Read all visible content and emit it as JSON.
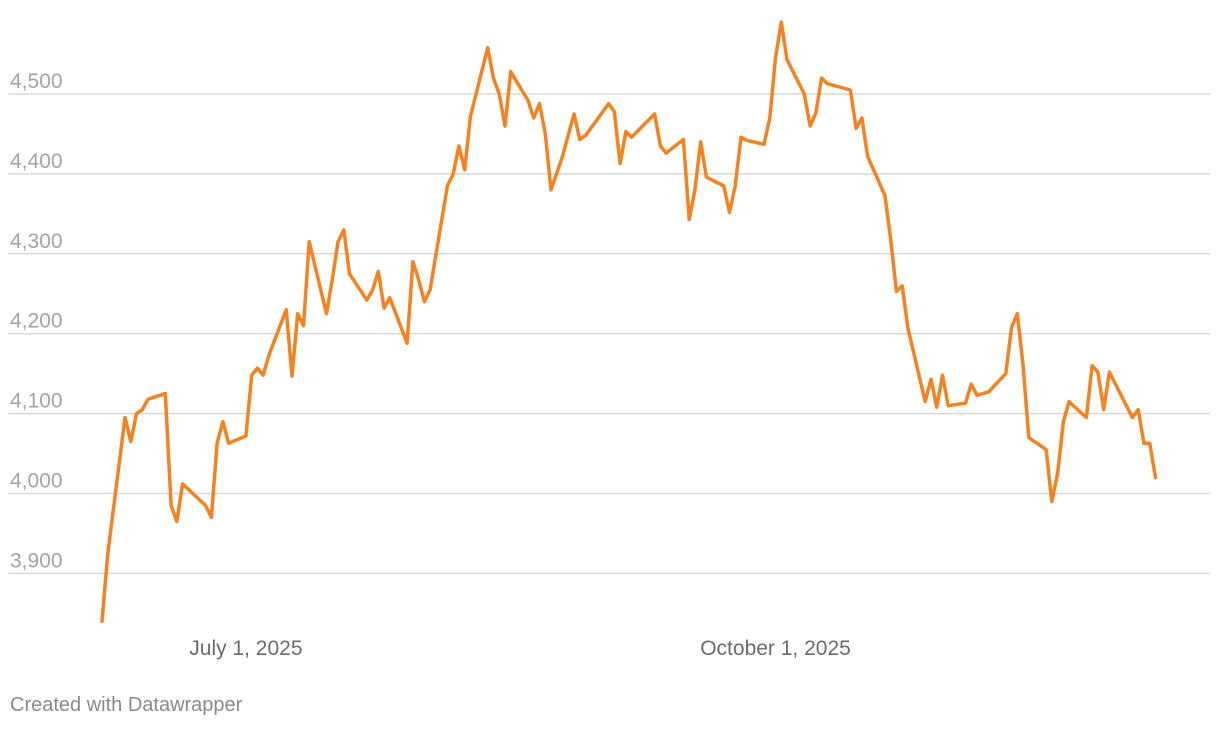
{
  "chart_data": {
    "type": "line",
    "title": "",
    "xlabel": "",
    "ylabel": "",
    "ylim": [
      3840,
      4600
    ],
    "xlim": [
      "2025-06-06",
      "2025-12-12"
    ],
    "grid": true,
    "y_ticks": [
      {
        "value": 3900,
        "label": "3,900"
      },
      {
        "value": 4000,
        "label": "4,000"
      },
      {
        "value": 4100,
        "label": "4,100"
      },
      {
        "value": 4200,
        "label": "4,200"
      },
      {
        "value": 4300,
        "label": "4,300"
      },
      {
        "value": 4400,
        "label": "4,400"
      },
      {
        "value": 4500,
        "label": "4,500"
      }
    ],
    "x_ticks": [
      {
        "value": "2025-07-01",
        "label": "July 1, 2025"
      },
      {
        "value": "2025-10-01",
        "label": "October 1, 2025"
      }
    ],
    "series": [
      {
        "color": "#f5821f",
        "points": [
          [
            "2025-06-06",
            3840
          ],
          [
            "2025-06-07",
            3925
          ],
          [
            "2025-06-10",
            4095
          ],
          [
            "2025-06-11",
            4065
          ],
          [
            "2025-06-12",
            4100
          ],
          [
            "2025-06-13",
            4105
          ],
          [
            "2025-06-14",
            4118
          ],
          [
            "2025-06-17",
            4125
          ],
          [
            "2025-06-18",
            3985
          ],
          [
            "2025-06-19",
            3965
          ],
          [
            "2025-06-20",
            4012
          ],
          [
            "2025-06-24",
            3985
          ],
          [
            "2025-06-25",
            3970
          ],
          [
            "2025-06-26",
            4063
          ],
          [
            "2025-06-27",
            4090
          ],
          [
            "2025-06-28",
            4063
          ],
          [
            "2025-07-01",
            4072
          ],
          [
            "2025-07-02",
            4148
          ],
          [
            "2025-07-03",
            4157
          ],
          [
            "2025-07-04",
            4148
          ],
          [
            "2025-07-05",
            4173
          ],
          [
            "2025-07-08",
            4230
          ],
          [
            "2025-07-09",
            4147
          ],
          [
            "2025-07-10",
            4225
          ],
          [
            "2025-07-11",
            4210
          ],
          [
            "2025-07-12",
            4315
          ],
          [
            "2025-07-15",
            4225
          ],
          [
            "2025-07-16",
            4268
          ],
          [
            "2025-07-17",
            4315
          ],
          [
            "2025-07-18",
            4330
          ],
          [
            "2025-07-19",
            4275
          ],
          [
            "2025-07-22",
            4242
          ],
          [
            "2025-07-23",
            4255
          ],
          [
            "2025-07-24",
            4278
          ],
          [
            "2025-07-25",
            4232
          ],
          [
            "2025-07-26",
            4245
          ],
          [
            "2025-07-29",
            4188
          ],
          [
            "2025-07-30",
            4290
          ],
          [
            "2025-07-31",
            4268
          ],
          [
            "2025-08-01",
            4240
          ],
          [
            "2025-08-02",
            4255
          ],
          [
            "2025-08-05",
            4385
          ],
          [
            "2025-08-06",
            4400
          ],
          [
            "2025-08-07",
            4435
          ],
          [
            "2025-08-08",
            4405
          ],
          [
            "2025-08-09",
            4472
          ],
          [
            "2025-08-12",
            4558
          ],
          [
            "2025-08-13",
            4520
          ],
          [
            "2025-08-14",
            4500
          ],
          [
            "2025-08-15",
            4460
          ],
          [
            "2025-08-16",
            4528
          ],
          [
            "2025-08-19",
            4492
          ],
          [
            "2025-08-20",
            4470
          ],
          [
            "2025-08-21",
            4488
          ],
          [
            "2025-08-22",
            4450
          ],
          [
            "2025-08-23",
            4380
          ],
          [
            "2025-08-25",
            4422
          ],
          [
            "2025-08-27",
            4475
          ],
          [
            "2025-08-28",
            4443
          ],
          [
            "2025-08-29",
            4448
          ],
          [
            "2025-09-02",
            4488
          ],
          [
            "2025-09-03",
            4478
          ],
          [
            "2025-09-04",
            4413
          ],
          [
            "2025-09-05",
            4453
          ],
          [
            "2025-09-06",
            4446
          ],
          [
            "2025-09-10",
            4475
          ],
          [
            "2025-09-11",
            4435
          ],
          [
            "2025-09-12",
            4426
          ],
          [
            "2025-09-15",
            4443
          ],
          [
            "2025-09-16",
            4343
          ],
          [
            "2025-09-17",
            4380
          ],
          [
            "2025-09-18",
            4440
          ],
          [
            "2025-09-19",
            4396
          ],
          [
            "2025-09-22",
            4385
          ],
          [
            "2025-09-23",
            4352
          ],
          [
            "2025-09-24",
            4385
          ],
          [
            "2025-09-25",
            4446
          ],
          [
            "2025-09-26",
            4442
          ],
          [
            "2025-09-29",
            4437
          ],
          [
            "2025-09-30",
            4470
          ],
          [
            "2025-10-01",
            4545
          ],
          [
            "2025-10-02",
            4590
          ],
          [
            "2025-10-03",
            4543
          ],
          [
            "2025-10-06",
            4500
          ],
          [
            "2025-10-07",
            4460
          ],
          [
            "2025-10-08",
            4476
          ],
          [
            "2025-10-09",
            4520
          ],
          [
            "2025-10-10",
            4513
          ],
          [
            "2025-10-14",
            4505
          ],
          [
            "2025-10-15",
            4457
          ],
          [
            "2025-10-16",
            4470
          ],
          [
            "2025-10-17",
            4422
          ],
          [
            "2025-10-20",
            4373
          ],
          [
            "2025-10-21",
            4318
          ],
          [
            "2025-10-22",
            4253
          ],
          [
            "2025-10-23",
            4260
          ],
          [
            "2025-10-24",
            4207
          ],
          [
            "2025-10-27",
            4115
          ],
          [
            "2025-10-28",
            4143
          ],
          [
            "2025-10-29",
            4108
          ],
          [
            "2025-10-30",
            4148
          ],
          [
            "2025-10-31",
            4110
          ],
          [
            "2025-11-03",
            4113
          ],
          [
            "2025-11-04",
            4137
          ],
          [
            "2025-11-05",
            4123
          ],
          [
            "2025-11-06",
            4125
          ],
          [
            "2025-11-07",
            4127
          ],
          [
            "2025-11-10",
            4150
          ],
          [
            "2025-11-11",
            4208
          ],
          [
            "2025-11-12",
            4225
          ],
          [
            "2025-11-13",
            4160
          ],
          [
            "2025-11-14",
            4070
          ],
          [
            "2025-11-17",
            4055
          ],
          [
            "2025-11-18",
            3990
          ],
          [
            "2025-11-19",
            4025
          ],
          [
            "2025-11-20",
            4090
          ],
          [
            "2025-11-21",
            4115
          ],
          [
            "2025-11-24",
            4095
          ],
          [
            "2025-11-25",
            4160
          ],
          [
            "2025-11-26",
            4152
          ],
          [
            "2025-11-27",
            4105
          ],
          [
            "2025-11-28",
            4152
          ],
          [
            "2025-12-02",
            4095
          ],
          [
            "2025-12-03",
            4105
          ],
          [
            "2025-12-04",
            4063
          ],
          [
            "2025-12-05",
            4063
          ],
          [
            "2025-12-06",
            4020
          ]
        ]
      }
    ]
  },
  "footer": {
    "credit": "Created with Datawrapper"
  }
}
